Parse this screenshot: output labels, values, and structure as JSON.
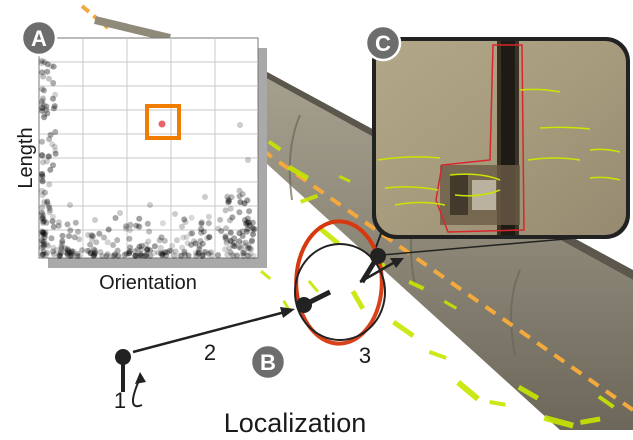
{
  "panels": {
    "a": {
      "badge": "A",
      "xlabel": "Orientation",
      "ylabel": "Length"
    },
    "b": {
      "badge": "B",
      "title": "Localization",
      "steps": [
        "1",
        "2",
        "3"
      ]
    },
    "c": {
      "badge": "C"
    }
  },
  "colors": {
    "badge_fill": "#6d6d6d",
    "highlight_box": "#f07d00",
    "selected_point": "#e8656a",
    "crack_marks": "#c8e600",
    "centerline": "#f3a93c",
    "localization_ring": "#d6380f",
    "pipe_surface": "#8d8777",
    "defect_outline": "#d9262c"
  },
  "icons": {
    "rotate": "curved-arrow-icon",
    "probe": "pin-icon"
  }
}
